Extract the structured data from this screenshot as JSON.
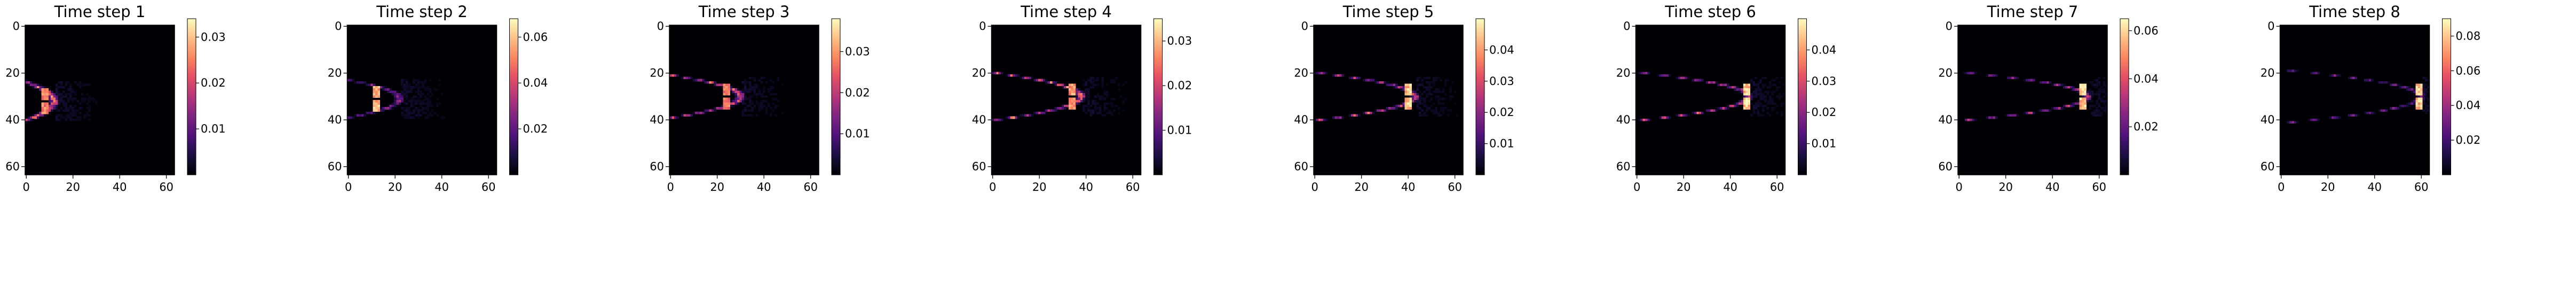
{
  "colormap": "magma",
  "colors": {
    "background": "#000004",
    "mid": "#b73779",
    "high": "#fcfdbf"
  },
  "chart_data": [
    {
      "type": "heatmap",
      "title": "Time step 1",
      "grid_size": 64,
      "xticks": [
        0,
        20,
        40,
        60
      ],
      "yticks": [
        0,
        20,
        40,
        60
      ],
      "plume": {
        "front_x": 12,
        "center_y": 32,
        "half_width": 10,
        "brightness": 0.6,
        "peak_x": 8,
        "peak_value": 0.85
      },
      "colorbar": {
        "min": 0,
        "max": 0.034,
        "ticks": [
          0.01,
          0.02,
          0.03
        ],
        "tick_labels": [
          "0.01",
          "0.02",
          "0.03"
        ]
      }
    },
    {
      "type": "heatmap",
      "title": "Time step 2",
      "grid_size": 64,
      "xticks": [
        0,
        20,
        40,
        60
      ],
      "yticks": [
        0,
        20,
        40,
        60
      ],
      "plume": {
        "front_x": 22,
        "center_y": 31,
        "half_width": 9,
        "brightness": 0.35,
        "peak_x": 12,
        "peak_value": 0.95
      },
      "colorbar": {
        "min": 0,
        "max": 0.068,
        "ticks": [
          0.02,
          0.04,
          0.06
        ],
        "tick_labels": [
          "0.02",
          "0.04",
          "0.06"
        ]
      }
    },
    {
      "type": "heatmap",
      "title": "Time step 3",
      "grid_size": 64,
      "xticks": [
        0,
        20,
        40,
        60
      ],
      "yticks": [
        0,
        20,
        40,
        60
      ],
      "plume": {
        "front_x": 30,
        "center_y": 30,
        "half_width": 10,
        "brightness": 0.55,
        "peak_x": 24,
        "peak_value": 0.8
      },
      "colorbar": {
        "min": 0,
        "max": 0.038,
        "ticks": [
          0.01,
          0.02,
          0.03
        ],
        "tick_labels": [
          "0.01",
          "0.02",
          "0.03"
        ]
      }
    },
    {
      "type": "heatmap",
      "title": "Time step 4",
      "grid_size": 64,
      "xticks": [
        0,
        20,
        40,
        60
      ],
      "yticks": [
        0,
        20,
        40,
        60
      ],
      "plume": {
        "front_x": 38,
        "center_y": 30,
        "half_width": 11,
        "brightness": 0.6,
        "peak_x": 34,
        "peak_value": 0.9
      },
      "colorbar": {
        "min": 0,
        "max": 0.035,
        "ticks": [
          0.01,
          0.02,
          0.03
        ],
        "tick_labels": [
          "0.01",
          "0.02",
          "0.03"
        ]
      }
    },
    {
      "type": "heatmap",
      "title": "Time step 5",
      "grid_size": 64,
      "xticks": [
        0,
        20,
        40,
        60
      ],
      "yticks": [
        0,
        20,
        40,
        60
      ],
      "plume": {
        "front_x": 43,
        "center_y": 30,
        "half_width": 11,
        "brightness": 0.5,
        "peak_x": 40,
        "peak_value": 1.0
      },
      "colorbar": {
        "min": 0,
        "max": 0.05,
        "ticks": [
          0.01,
          0.02,
          0.03,
          0.04
        ],
        "tick_labels": [
          "0.01",
          "0.02",
          "0.03",
          "0.04"
        ]
      }
    },
    {
      "type": "heatmap",
      "title": "Time step 6",
      "grid_size": 64,
      "xticks": [
        0,
        20,
        40,
        60
      ],
      "yticks": [
        0,
        20,
        40,
        60
      ],
      "plume": {
        "front_x": 48,
        "center_y": 30,
        "half_width": 11,
        "brightness": 0.5,
        "peak_x": 47,
        "peak_value": 1.0
      },
      "colorbar": {
        "min": 0,
        "max": 0.05,
        "ticks": [
          0.01,
          0.02,
          0.03,
          0.04
        ],
        "tick_labels": [
          "0.01",
          "0.02",
          "0.03",
          "0.04"
        ]
      }
    },
    {
      "type": "heatmap",
      "title": "Time step 7",
      "grid_size": 64,
      "xticks": [
        0,
        20,
        40,
        60
      ],
      "yticks": [
        0,
        20,
        40,
        60
      ],
      "plume": {
        "front_x": 55,
        "center_y": 30,
        "half_width": 11,
        "brightness": 0.45,
        "peak_x": 53,
        "peak_value": 1.0
      },
      "colorbar": {
        "min": 0,
        "max": 0.065,
        "ticks": [
          0.02,
          0.04,
          0.06
        ],
        "tick_labels": [
          "0.02",
          "0.04",
          "0.06"
        ]
      }
    },
    {
      "type": "heatmap",
      "title": "Time step 8",
      "grid_size": 64,
      "xticks": [
        0,
        20,
        40,
        60
      ],
      "yticks": [
        0,
        20,
        40,
        60
      ],
      "plume": {
        "front_x": 60,
        "center_y": 30,
        "half_width": 12,
        "brightness": 0.3,
        "peak_x": 59,
        "peak_value": 1.0
      },
      "colorbar": {
        "min": 0,
        "max": 0.09,
        "ticks": [
          0.02,
          0.04,
          0.06,
          0.08
        ],
        "tick_labels": [
          "0.02",
          "0.04",
          "0.06",
          "0.08"
        ]
      }
    }
  ]
}
